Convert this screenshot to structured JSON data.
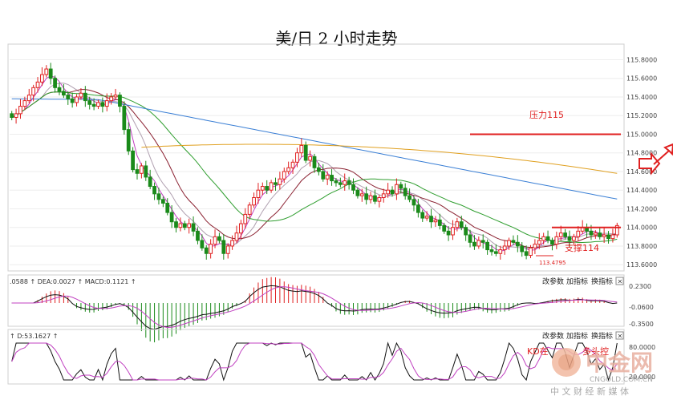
{
  "title": "美/日 2 小时走势",
  "chart_data": {
    "type": "candlestick",
    "y_axis": {
      "ticks": [
        "115.8000",
        "115.6000",
        "115.4000",
        "115.2000",
        "115.0000",
        "114.8000",
        "114.6000",
        "114.4000",
        "114.2000",
        "114.0000",
        "113.8000",
        "113.6000"
      ],
      "ylim": [
        113.55,
        115.95
      ]
    },
    "close_series": [
      115.18,
      115.22,
      115.3,
      115.36,
      115.42,
      115.5,
      115.56,
      115.64,
      115.7,
      115.6,
      115.5,
      115.46,
      115.42,
      115.38,
      115.34,
      115.4,
      115.44,
      115.36,
      115.32,
      115.3,
      115.34,
      115.3,
      115.36,
      115.4,
      115.42,
      115.3,
      115.05,
      114.82,
      114.62,
      114.58,
      114.66,
      114.54,
      114.44,
      114.36,
      114.3,
      114.26,
      114.16,
      114.06,
      114.0,
      114.04,
      114.0,
      114.04,
      113.96,
      113.86,
      113.78,
      113.72,
      113.82,
      113.9,
      113.86,
      113.72,
      113.8,
      113.86,
      113.94,
      114.04,
      114.14,
      114.24,
      114.32,
      114.4,
      114.44,
      114.4,
      114.48,
      114.46,
      114.52,
      114.6,
      114.64,
      114.7,
      114.8,
      114.88,
      114.72,
      114.76,
      114.64,
      114.6,
      114.52,
      114.56,
      114.5,
      114.48,
      114.46,
      114.5,
      114.46,
      114.4,
      114.34,
      114.36,
      114.3,
      114.34,
      114.28,
      114.32,
      114.36,
      114.4,
      114.36,
      114.46,
      114.42,
      114.34,
      114.3,
      114.24,
      114.16,
      114.1,
      114.12,
      114.06,
      114.08,
      114.02,
      113.96,
      113.92,
      114.0,
      114.06,
      114.0,
      113.92,
      113.84,
      113.8,
      113.86,
      113.84,
      113.76,
      113.74,
      113.72,
      113.76,
      113.8,
      113.86,
      113.84,
      113.8,
      113.74,
      113.7,
      113.78,
      113.82,
      113.86,
      113.9,
      113.86,
      113.82,
      113.9,
      113.94,
      113.9,
      113.86,
      113.9,
      113.96,
      114.0,
      113.96,
      113.92,
      113.94,
      113.9,
      113.92,
      113.88,
      113.92,
      114.02
    ],
    "price_annotations": {
      "resistance_label": "压力115",
      "resistance_value": 115.0,
      "support_label": "支撑114",
      "support_value": 114.0,
      "low_label": "113.4795"
    },
    "macd": {
      "header": ".0588 ↑ DEA:0.0027 ↑ MACD:0.1121 ↑",
      "ticks": [
        "0.2300",
        "-0.0600",
        "-0.3500"
      ]
    },
    "kd": {
      "header": "↑ D:53.1627 ↑",
      "ticks": [
        "80.0000",
        "20.0000"
      ],
      "annotation": "KD在"
    }
  },
  "toolbar": {
    "params_label": "改参数",
    "add_label": "加指标",
    "switch_label": "换指标",
    "close_label": "×"
  },
  "watermark": {
    "brand": "中金网",
    "site": "CNGOLD.COM.CN",
    "tagline": "中 文 财 经 新 媒 体",
    "partial_text": "多头控"
  },
  "colors": {
    "up": "#e02020",
    "down": "#1a8a1a",
    "ma_blue": "#3a7fd5",
    "ma_green": "#2f9e2f",
    "ma_orange": "#e0a020",
    "ma_maroon": "#8a2030",
    "ma_pink": "#c040c0",
    "annotation": "#e02020"
  }
}
